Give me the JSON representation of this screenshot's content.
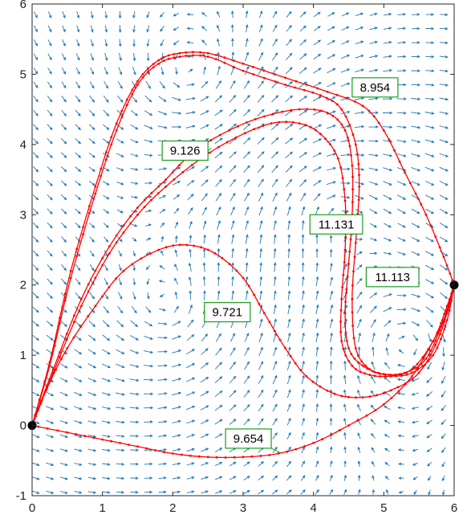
{
  "chart_data": {
    "type": "line",
    "title": "",
    "xlabel": "",
    "ylabel": "",
    "xlim": [
      0,
      6
    ],
    "ylim": [
      -1,
      6
    ],
    "x_ticks": [
      "0",
      "1",
      "2",
      "3",
      "4",
      "5",
      "6"
    ],
    "y_ticks": [
      "-1",
      "0",
      "1",
      "2",
      "3",
      "4",
      "5",
      "6"
    ],
    "grid": false,
    "legend": "none",
    "vector_field": {
      "description_shown": "quiver arrows",
      "color": "#1f77b4",
      "centers": [
        [
          2.3,
          4.9
        ],
        [
          4.2,
          3.2
        ],
        [
          2.0,
          1.6
        ],
        [
          5.3,
          1.2
        ]
      ]
    },
    "endpoints": [
      {
        "x": 0,
        "y": 0
      },
      {
        "x": 6,
        "y": 2
      }
    ],
    "series": [
      {
        "color": "#ff0000",
        "points": [
          [
            0,
            0
          ],
          [
            0.25,
            0.9
          ],
          [
            0.55,
            2.2
          ],
          [
            0.9,
            3.4
          ],
          [
            1.2,
            4.3
          ],
          [
            1.5,
            4.9
          ],
          [
            1.8,
            5.2
          ],
          [
            2.1,
            5.3
          ],
          [
            2.5,
            5.3
          ],
          [
            3.0,
            5.15
          ],
          [
            3.6,
            4.95
          ],
          [
            4.2,
            4.75
          ],
          [
            4.7,
            4.55
          ],
          [
            5.0,
            4.2
          ],
          [
            5.3,
            3.6
          ],
          [
            5.6,
            3.0
          ],
          [
            5.85,
            2.4
          ],
          [
            6,
            2
          ]
        ]
      },
      {
        "color": "#ff0000",
        "points": [
          [
            0,
            0
          ],
          [
            0.25,
            0.85
          ],
          [
            0.55,
            2.1
          ],
          [
            0.9,
            3.3
          ],
          [
            1.2,
            4.2
          ],
          [
            1.5,
            4.85
          ],
          [
            1.8,
            5.15
          ],
          [
            2.1,
            5.25
          ],
          [
            2.5,
            5.25
          ],
          [
            3.0,
            5.05
          ],
          [
            3.6,
            4.85
          ],
          [
            4.1,
            4.7
          ],
          [
            4.4,
            4.5
          ],
          [
            4.6,
            4.0
          ],
          [
            4.65,
            3.4
          ],
          [
            4.6,
            2.6
          ],
          [
            4.55,
            1.8
          ],
          [
            4.6,
            1.1
          ],
          [
            4.8,
            0.8
          ],
          [
            5.1,
            0.72
          ],
          [
            5.4,
            0.8
          ],
          [
            5.7,
            1.2
          ],
          [
            5.9,
            1.7
          ],
          [
            6,
            2
          ]
        ]
      },
      {
        "color": "#ff0000",
        "points": [
          [
            0,
            0
          ],
          [
            0.3,
            0.8
          ],
          [
            0.7,
            1.8
          ],
          [
            1.1,
            2.55
          ],
          [
            1.5,
            3.1
          ],
          [
            1.9,
            3.5
          ],
          [
            2.3,
            3.9
          ],
          [
            2.8,
            4.2
          ],
          [
            3.3,
            4.4
          ],
          [
            3.8,
            4.5
          ],
          [
            4.2,
            4.45
          ],
          [
            4.45,
            4.2
          ],
          [
            4.55,
            3.7
          ],
          [
            4.55,
            3.0
          ],
          [
            4.5,
            2.3
          ],
          [
            4.45,
            1.6
          ],
          [
            4.5,
            1.1
          ],
          [
            4.7,
            0.85
          ],
          [
            5.0,
            0.73
          ],
          [
            5.3,
            0.75
          ],
          [
            5.6,
            0.95
          ],
          [
            5.85,
            1.5
          ],
          [
            6,
            2
          ]
        ]
      },
      {
        "color": "#ff0000",
        "points": [
          [
            0,
            0
          ],
          [
            0.3,
            0.75
          ],
          [
            0.7,
            1.7
          ],
          [
            1.1,
            2.45
          ],
          [
            1.5,
            3.0
          ],
          [
            1.9,
            3.4
          ],
          [
            2.4,
            3.8
          ],
          [
            2.9,
            4.1
          ],
          [
            3.4,
            4.3
          ],
          [
            3.8,
            4.3
          ],
          [
            4.1,
            4.15
          ],
          [
            4.35,
            3.8
          ],
          [
            4.45,
            3.2
          ],
          [
            4.45,
            2.5
          ],
          [
            4.4,
            1.8
          ],
          [
            4.4,
            1.2
          ],
          [
            4.55,
            0.85
          ],
          [
            4.8,
            0.72
          ],
          [
            5.1,
            0.7
          ],
          [
            5.4,
            0.75
          ],
          [
            5.7,
            1.0
          ],
          [
            5.9,
            1.5
          ],
          [
            6,
            2
          ]
        ]
      },
      {
        "color": "#ff0000",
        "points": [
          [
            0,
            0
          ],
          [
            0.2,
            0.5
          ],
          [
            0.5,
            1.1
          ],
          [
            0.9,
            1.7
          ],
          [
            1.3,
            2.2
          ],
          [
            1.8,
            2.5
          ],
          [
            2.2,
            2.57
          ],
          [
            2.6,
            2.45
          ],
          [
            3.0,
            2.1
          ],
          [
            3.3,
            1.6
          ],
          [
            3.6,
            1.1
          ],
          [
            3.9,
            0.7
          ],
          [
            4.3,
            0.45
          ],
          [
            4.7,
            0.4
          ],
          [
            5.1,
            0.5
          ],
          [
            5.5,
            0.75
          ],
          [
            5.8,
            1.3
          ],
          [
            6,
            2
          ]
        ]
      },
      {
        "color": "#ff0000",
        "points": [
          [
            0,
            0
          ],
          [
            0.5,
            -0.1
          ],
          [
            1.0,
            -0.2
          ],
          [
            1.5,
            -0.3
          ],
          [
            2.0,
            -0.4
          ],
          [
            2.5,
            -0.45
          ],
          [
            3.0,
            -0.45
          ],
          [
            3.5,
            -0.4
          ],
          [
            4.0,
            -0.25
          ],
          [
            4.5,
            0.0
          ],
          [
            5.0,
            0.3
          ],
          [
            5.4,
            0.7
          ],
          [
            5.7,
            1.2
          ],
          [
            5.9,
            1.6
          ],
          [
            6,
            2
          ]
        ]
      }
    ],
    "annotations": [
      {
        "text": "8.954",
        "box_x": 4.55,
        "box_y": 4.95,
        "anchor_x": 4.55,
        "anchor_y": 4.75
      },
      {
        "text": "9.126",
        "box_x": 1.85,
        "box_y": 4.05,
        "anchor_x": 2.55,
        "anchor_y": 3.95
      },
      {
        "text": "11.131",
        "box_x": 3.95,
        "box_y": 3.0,
        "anchor_x": 4.55,
        "anchor_y": 2.7
      },
      {
        "text": "11.113",
        "box_x": 4.75,
        "box_y": 2.25,
        "anchor_x": 4.75,
        "anchor_y": 2.05
      },
      {
        "text": "9.721",
        "box_x": 2.45,
        "box_y": 1.75,
        "anchor_x": 2.45,
        "anchor_y": 1.55
      },
      {
        "text": "9.654",
        "box_x": 2.75,
        "box_y": -0.05,
        "anchor_x": 3.55,
        "anchor_y": -0.4
      }
    ]
  }
}
